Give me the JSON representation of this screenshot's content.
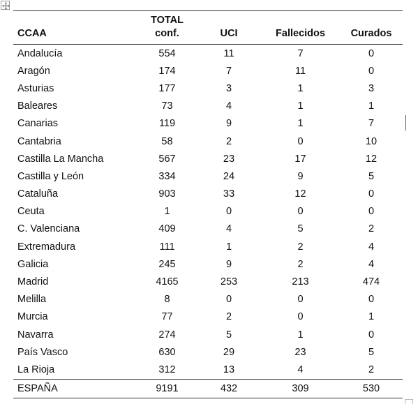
{
  "table": {
    "headers": {
      "ccaa": "CCAA",
      "total_line1": "TOTAL",
      "total_line2": "conf.",
      "uci": "UCI",
      "fallecidos": "Fallecidos",
      "curados": "Curados"
    },
    "rows": [
      {
        "name": "Andalucía",
        "total": "554",
        "uci": "11",
        "fallecidos": "7",
        "curados": "0"
      },
      {
        "name": "Aragón",
        "total": "174",
        "uci": "7",
        "fallecidos": "11",
        "curados": "0"
      },
      {
        "name": "Asturias",
        "total": "177",
        "uci": "3",
        "fallecidos": "1",
        "curados": "3"
      },
      {
        "name": "Baleares",
        "total": "73",
        "uci": "4",
        "fallecidos": "1",
        "curados": "1"
      },
      {
        "name": "Canarias",
        "total": "119",
        "uci": "9",
        "fallecidos": "1",
        "curados": "7"
      },
      {
        "name": "Cantabria",
        "total": "58",
        "uci": "2",
        "fallecidos": "0",
        "curados": "10"
      },
      {
        "name": "Castilla La Mancha",
        "total": "567",
        "uci": "23",
        "fallecidos": "17",
        "curados": "12"
      },
      {
        "name": "Castilla y León",
        "total": "334",
        "uci": "24",
        "fallecidos": "9",
        "curados": "5"
      },
      {
        "name": "Cataluña",
        "total": "903",
        "uci": "33",
        "fallecidos": "12",
        "curados": "0"
      },
      {
        "name": "Ceuta",
        "total": "1",
        "uci": "0",
        "fallecidos": "0",
        "curados": "0"
      },
      {
        "name": "C. Valenciana",
        "total": "409",
        "uci": "4",
        "fallecidos": "5",
        "curados": "2"
      },
      {
        "name": "Extremadura",
        "total": "111",
        "uci": "1",
        "fallecidos": "2",
        "curados": "4"
      },
      {
        "name": "Galicia",
        "total": "245",
        "uci": "9",
        "fallecidos": "2",
        "curados": "4"
      },
      {
        "name": "Madrid",
        "total": "4165",
        "uci": "253",
        "fallecidos": "213",
        "curados": "474"
      },
      {
        "name": "Melilla",
        "total": "8",
        "uci": "0",
        "fallecidos": "0",
        "curados": "0"
      },
      {
        "name": "Murcia",
        "total": "77",
        "uci": "2",
        "fallecidos": "0",
        "curados": "1"
      },
      {
        "name": "Navarra",
        "total": "274",
        "uci": "5",
        "fallecidos": "1",
        "curados": "0"
      },
      {
        "name": "País Vasco",
        "total": "630",
        "uci": "29",
        "fallecidos": "23",
        "curados": "5"
      },
      {
        "name": "La Rioja",
        "total": "312",
        "uci": "13",
        "fallecidos": "4",
        "curados": "2"
      }
    ],
    "total_row": {
      "name": "ESPAÑA",
      "total": "9191",
      "uci": "432",
      "fallecidos": "309",
      "curados": "530"
    }
  },
  "icons": {
    "move_handle": "move-arrows-icon"
  },
  "colors": {
    "rule": "#333333",
    "text": "#111111"
  }
}
